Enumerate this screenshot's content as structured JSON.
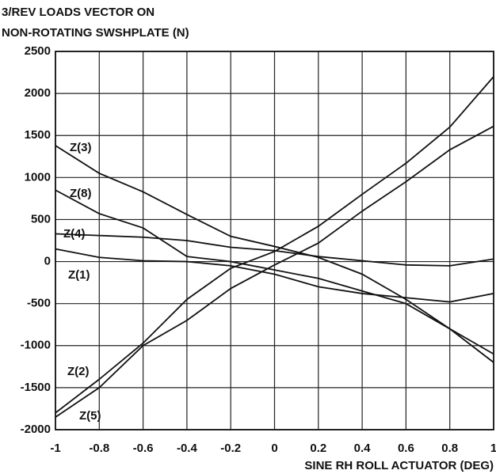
{
  "chart_data": {
    "type": "line",
    "title": [
      "3/REV LOADS VECTOR ON",
      "NON-ROTATING SWSHPLATE (N)"
    ],
    "x_label": "SINE RH ROLL ACTUATOR (DEG)",
    "x": [
      -1,
      -0.8,
      -0.6,
      -0.4,
      -0.2,
      0,
      0.2,
      0.4,
      0.6,
      0.8,
      1
    ],
    "xlim": [
      -1,
      1
    ],
    "xticks": [
      -1,
      -0.8,
      -0.6,
      -0.4,
      -0.2,
      0,
      0.2,
      0.4,
      0.6,
      0.8,
      1
    ],
    "ylim": [
      -2000,
      2500
    ],
    "yticks": [
      -2000,
      -1500,
      -1000,
      -500,
      0,
      500,
      1000,
      1500,
      2000,
      2500
    ],
    "grid": true,
    "series": [
      {
        "name": "Z(3)",
        "color": "#111111",
        "values": [
          1380,
          1050,
          830,
          560,
          300,
          180,
          50,
          -150,
          -450,
          -800,
          -1100
        ]
      },
      {
        "name": "Z(8)",
        "color": "#111111",
        "values": [
          850,
          570,
          400,
          60,
          0,
          -100,
          -200,
          -350,
          -500,
          -800,
          -1200
        ]
      },
      {
        "name": "Z(4)",
        "color": "#111111",
        "values": [
          330,
          310,
          290,
          250,
          170,
          130,
          60,
          10,
          -40,
          -50,
          30
        ]
      },
      {
        "name": "Z(1)",
        "color": "#111111",
        "values": [
          150,
          50,
          10,
          0,
          -50,
          -150,
          -300,
          -380,
          -430,
          -480,
          -380
        ]
      },
      {
        "name": "Z(2)",
        "color": "#111111",
        "values": [
          -1800,
          -1400,
          -970,
          -450,
          -80,
          120,
          420,
          800,
          1170,
          1600,
          2200
        ]
      },
      {
        "name": "Z(5)",
        "color": "#111111",
        "values": [
          -1850,
          -1500,
          -1000,
          -700,
          -320,
          -40,
          220,
          600,
          950,
          1330,
          1610
        ]
      }
    ]
  }
}
